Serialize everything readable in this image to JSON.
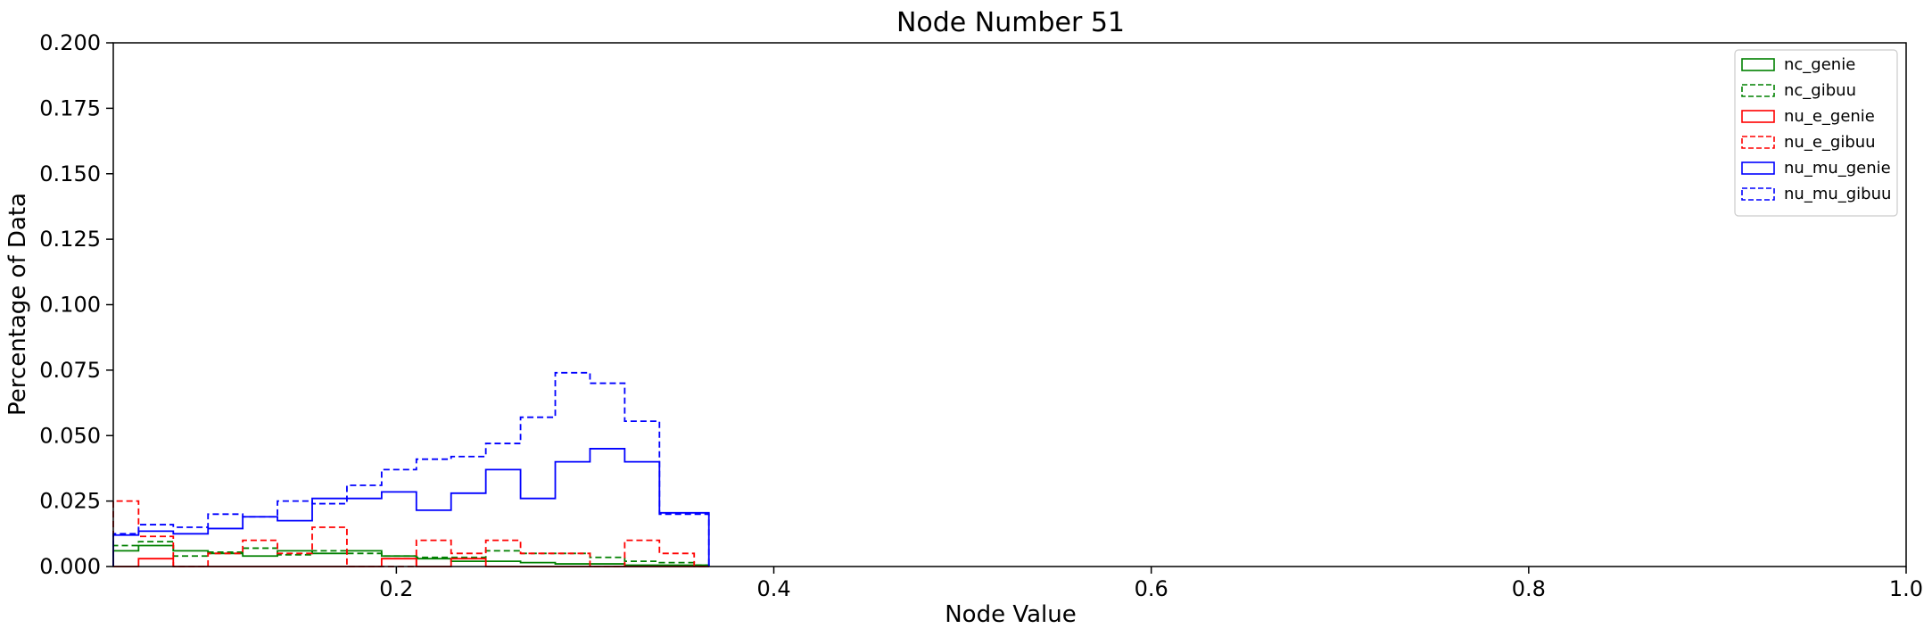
{
  "chart_data": {
    "type": "histogram",
    "title": "Node Number 51",
    "xlabel": "Node Value",
    "ylabel": "Percentage of Data",
    "xlim": [
      0.05,
      1.0
    ],
    "ylim": [
      0.0,
      0.2
    ],
    "xticks": [
      0.2,
      0.4,
      0.6,
      0.8,
      1.0
    ],
    "xtick_labels": [
      "0.2",
      "0.4",
      "0.6",
      "0.8",
      "1.0"
    ],
    "yticks": [
      0.0,
      0.025,
      0.05,
      0.075,
      0.1,
      0.125,
      0.15,
      0.175,
      0.2
    ],
    "ytick_labels": [
      "0.000",
      "0.025",
      "0.050",
      "0.075",
      "0.100",
      "0.125",
      "0.150",
      "0.175",
      "0.200"
    ],
    "legend_position": "top-right",
    "grid": false,
    "bin_edges": [
      0.045,
      0.0634,
      0.0818,
      0.1002,
      0.1186,
      0.137,
      0.1554,
      0.1738,
      0.1922,
      0.2106,
      0.229,
      0.2474,
      0.2658,
      0.2842,
      0.3026,
      0.321,
      0.3394,
      0.3578,
      0.3656
    ],
    "series": [
      {
        "name": "nc_genie",
        "color": "#008000",
        "dashed": false,
        "values": [
          0.006,
          0.008,
          0.006,
          0.005,
          0.004,
          0.006,
          0.005,
          0.006,
          0.004,
          0.003,
          0.002,
          0.002,
          0.0015,
          0.001,
          0.001,
          0.0005,
          0.0005,
          0.0005
        ]
      },
      {
        "name": "nc_gibuu",
        "color": "#008000",
        "dashed": true,
        "values": [
          0.008,
          0.0095,
          0.004,
          0.0055,
          0.007,
          0.0045,
          0.006,
          0.005,
          0.004,
          0.0035,
          0.0035,
          0.006,
          0.005,
          0.005,
          0.0035,
          0.002,
          0.0015,
          0.0005
        ]
      },
      {
        "name": "nu_e_genie",
        "color": "#ff0000",
        "dashed": false,
        "values": [
          0.0,
          0.003,
          0.0,
          0.0,
          0.0,
          0.0,
          0.0,
          0.0,
          0.003,
          0.0,
          0.003,
          0.0,
          0.0,
          0.0,
          0.0,
          0.0,
          0.0,
          0.0
        ]
      },
      {
        "name": "nu_e_gibuu",
        "color": "#ff0000",
        "dashed": true,
        "values": [
          0.025,
          0.0115,
          0.0,
          0.005,
          0.01,
          0.005,
          0.015,
          0.0,
          0.0,
          0.01,
          0.005,
          0.01,
          0.005,
          0.005,
          0.0,
          0.01,
          0.005,
          0.0
        ]
      },
      {
        "name": "nu_mu_genie",
        "color": "#0000ff",
        "dashed": false,
        "values": [
          0.012,
          0.0135,
          0.0125,
          0.0145,
          0.019,
          0.0175,
          0.026,
          0.026,
          0.0285,
          0.0215,
          0.028,
          0.037,
          0.026,
          0.04,
          0.045,
          0.04,
          0.0205,
          0.0205
        ]
      },
      {
        "name": "nu_mu_gibuu",
        "color": "#0000ff",
        "dashed": true,
        "values": [
          0.0125,
          0.016,
          0.015,
          0.02,
          0.019,
          0.025,
          0.024,
          0.031,
          0.037,
          0.041,
          0.042,
          0.047,
          0.057,
          0.074,
          0.07,
          0.0555,
          0.02,
          0.02
        ]
      }
    ]
  }
}
